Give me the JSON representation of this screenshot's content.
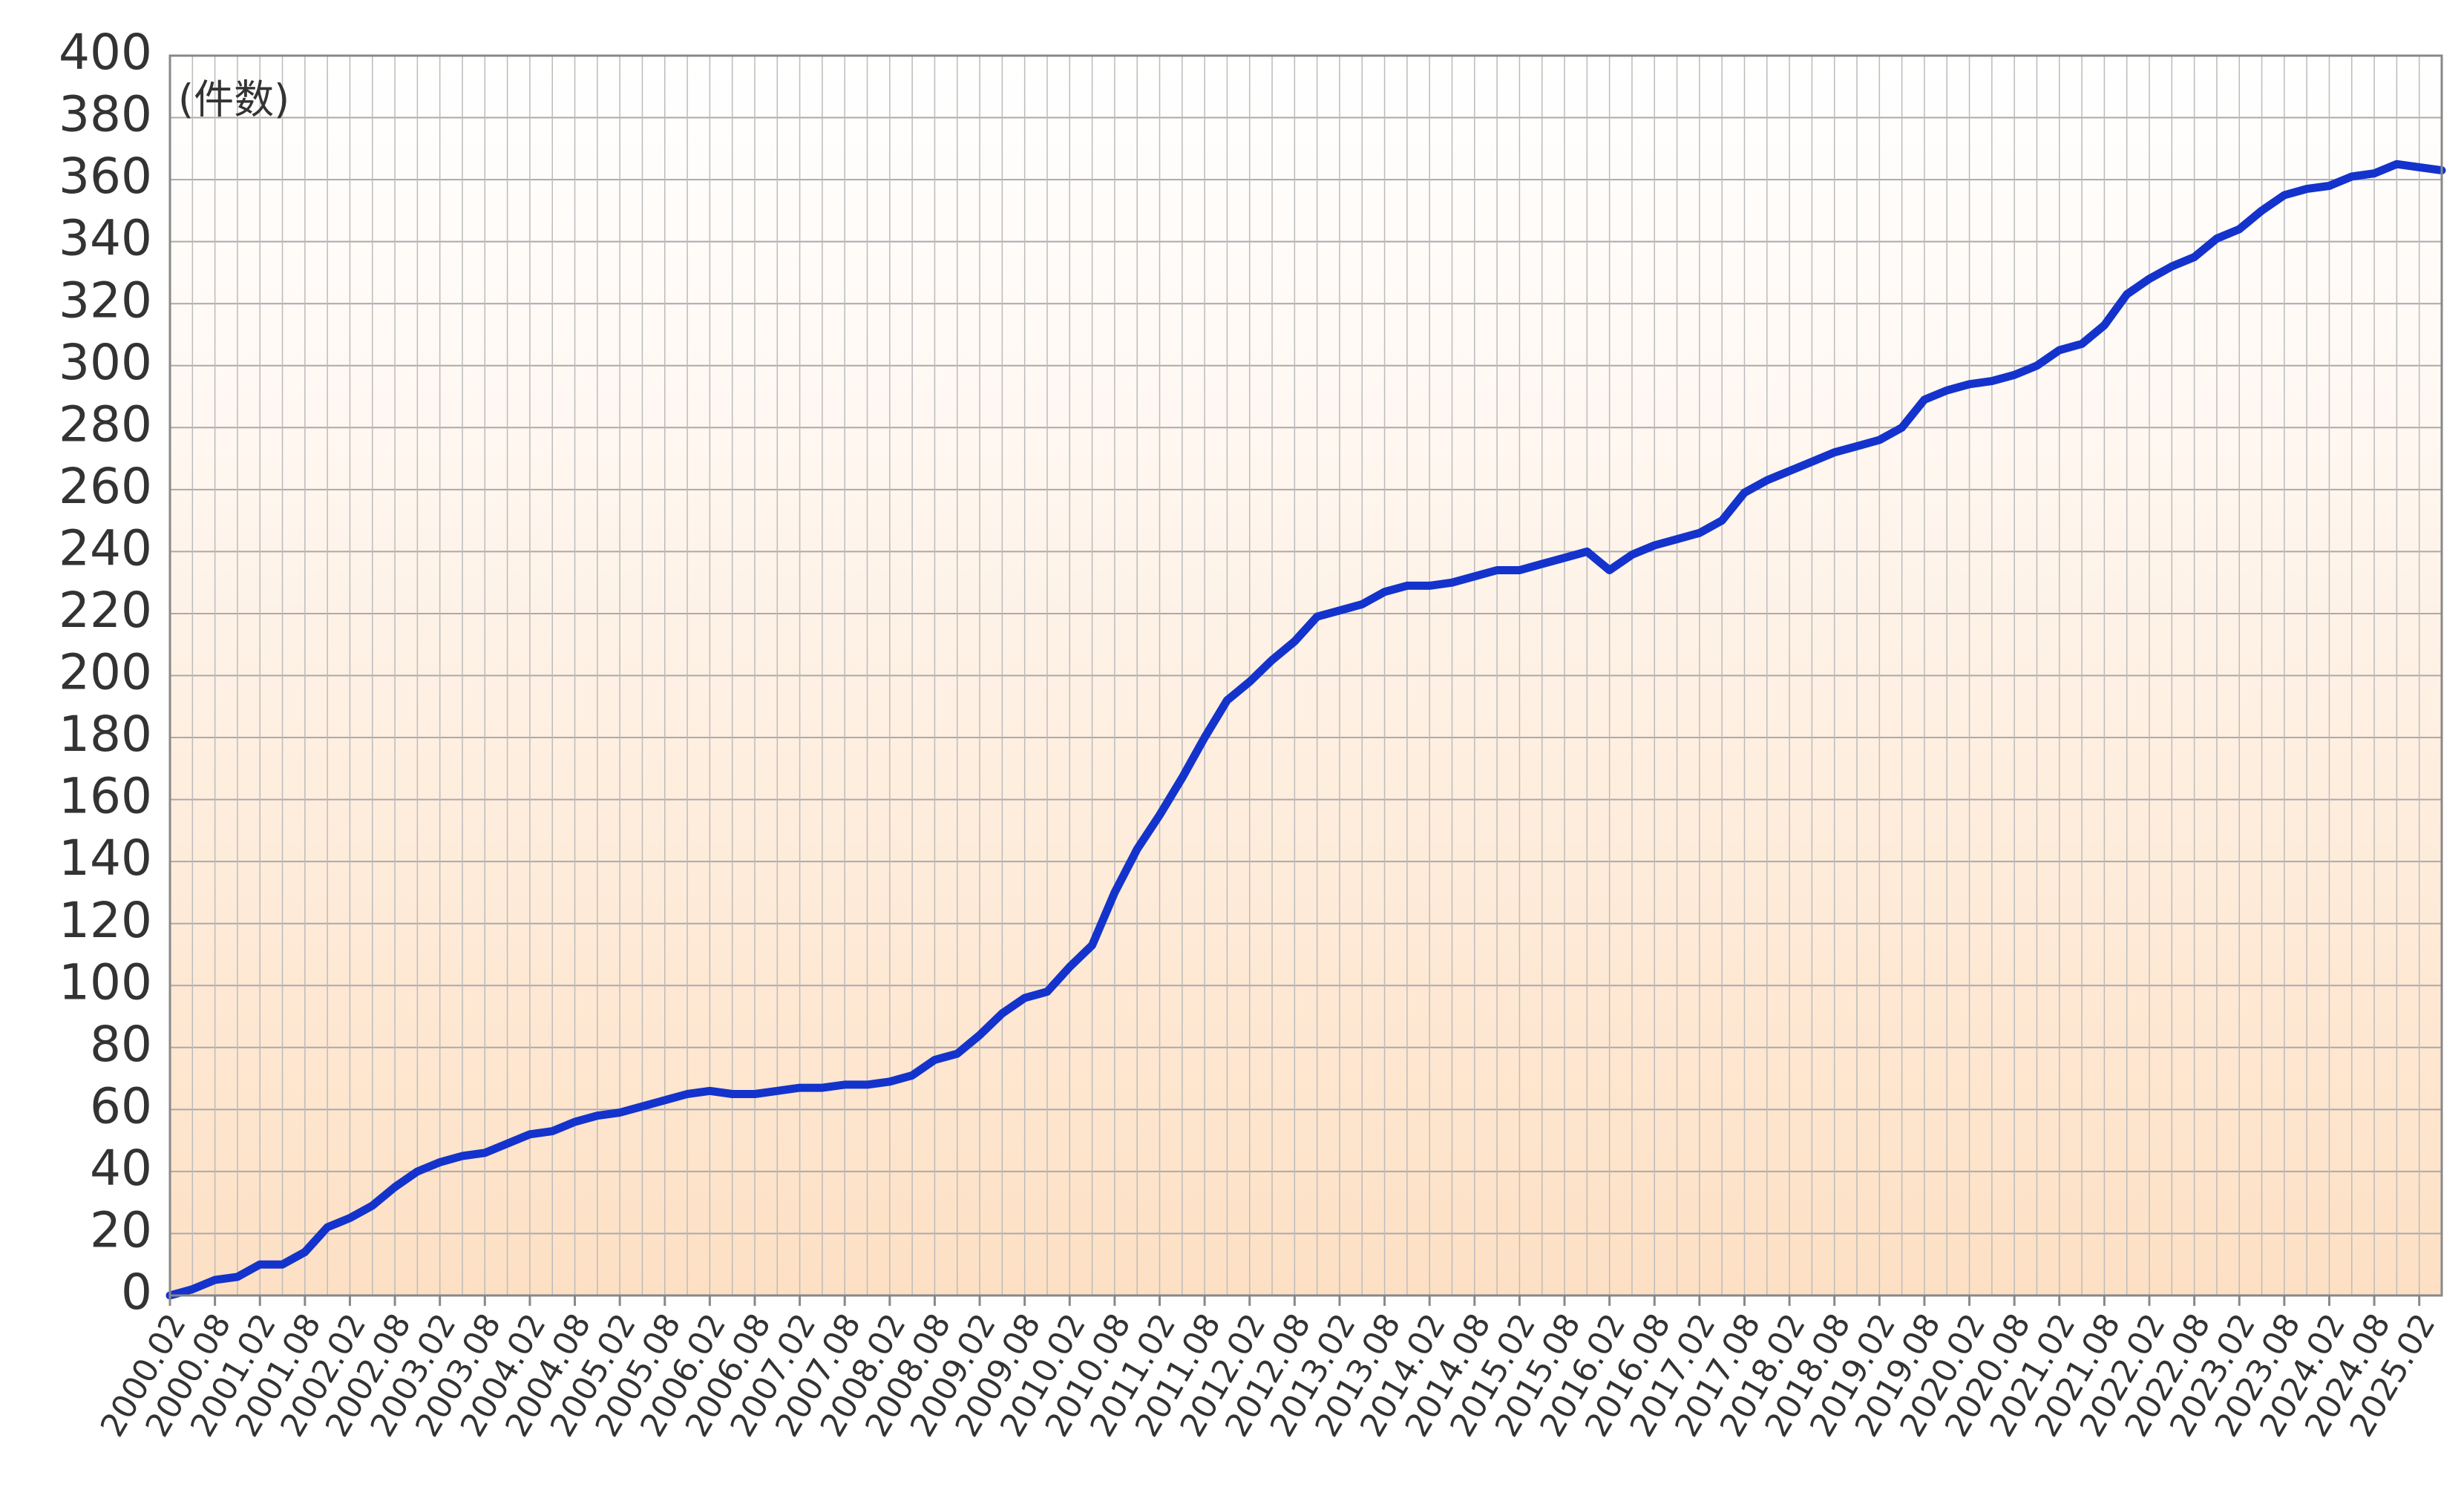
{
  "chart_data": {
    "type": "line",
    "annotation": "(件数)",
    "color": "#1433cc",
    "categories": [
      "2000.02",
      null,
      "2000.08",
      null,
      "2001.02",
      null,
      "2001.08",
      null,
      "2002.02",
      null,
      "2002.08",
      null,
      "2003.02",
      null,
      "2003.08",
      null,
      "2004.02",
      null,
      "2004.08",
      null,
      "2005.02",
      null,
      "2005.08",
      null,
      "2006.02",
      null,
      "2006.08",
      null,
      "2007.02",
      null,
      "2007.08",
      null,
      "2008.02",
      null,
      "2008.08",
      null,
      "2009.02",
      null,
      "2009.08",
      null,
      "2010.02",
      null,
      "2010.08",
      null,
      "2011.02",
      null,
      "2011.08",
      null,
      "2012.02",
      null,
      "2012.08",
      null,
      "2013.02",
      null,
      "2013.08",
      null,
      "2014.02",
      null,
      "2014.08",
      null,
      "2015.02",
      null,
      "2015.08",
      null,
      "2016.02",
      null,
      "2016.08",
      null,
      "2017.02",
      null,
      "2017.08",
      null,
      "2018.02",
      null,
      "2018.08",
      null,
      "2019.02",
      null,
      "2019.08",
      null,
      "2020.02",
      null,
      "2020.08",
      null,
      "2021.02",
      null,
      "2021.08",
      null,
      "2022.02",
      null,
      "2022.08",
      null,
      "2023.02",
      null,
      "2023.08",
      null,
      "2024.02",
      null,
      "2024.08",
      null,
      "2025.02",
      null
    ],
    "values": [
      0,
      2,
      5,
      6,
      10,
      10,
      14,
      22,
      25,
      29,
      35,
      40,
      43,
      45,
      46,
      49,
      52,
      53,
      56,
      58,
      59,
      61,
      63,
      65,
      66,
      65,
      65,
      66,
      67,
      67,
      68,
      68,
      69,
      71,
      76,
      78,
      84,
      91,
      96,
      98,
      106,
      113,
      130,
      144,
      155,
      167,
      180,
      192,
      198,
      205,
      211,
      219,
      221,
      223,
      227,
      229,
      229,
      230,
      232,
      234,
      234,
      236,
      238,
      240,
      234,
      239,
      242,
      244,
      246,
      250,
      259,
      263,
      266,
      269,
      272,
      274,
      276,
      280,
      289,
      292,
      294,
      295,
      297,
      300,
      305,
      307,
      313,
      323,
      328,
      332,
      335,
      341,
      344,
      350,
      355,
      357,
      358,
      361,
      362,
      365,
      364,
      363
    ],
    "ylim": [
      0,
      400
    ],
    "yticks": [
      0,
      20,
      40,
      60,
      80,
      100,
      120,
      140,
      160,
      180,
      200,
      220,
      240,
      260,
      280,
      300,
      320,
      340,
      360,
      380,
      400
    ],
    "grid": true
  }
}
